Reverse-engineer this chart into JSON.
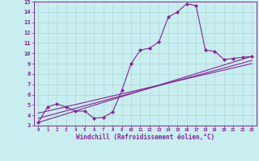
{
  "title": "",
  "xlabel": "Windchill (Refroidissement éolien,°C)",
  "bg_color": "#c8eef0",
  "grid_color": "#b0d8d8",
  "line_color": "#882299",
  "xlim": [
    -0.5,
    23.5
  ],
  "ylim": [
    3,
    15
  ],
  "xticks": [
    0,
    1,
    2,
    3,
    4,
    5,
    6,
    7,
    8,
    9,
    10,
    11,
    12,
    13,
    14,
    15,
    16,
    17,
    18,
    19,
    20,
    21,
    22,
    23
  ],
  "yticks": [
    3,
    4,
    5,
    6,
    7,
    8,
    9,
    10,
    11,
    12,
    13,
    14,
    15
  ],
  "noisy_x": [
    0,
    1,
    2,
    3,
    4,
    5,
    6,
    7,
    8,
    9,
    10,
    11,
    12,
    13,
    14,
    15,
    16,
    17,
    18,
    19,
    20,
    21,
    22,
    23
  ],
  "noisy_y": [
    3.3,
    4.8,
    5.1,
    4.8,
    4.4,
    4.4,
    3.7,
    3.8,
    4.3,
    6.4,
    9.0,
    10.3,
    10.5,
    11.1,
    13.5,
    14.0,
    14.8,
    14.6,
    10.3,
    10.2,
    9.4,
    9.5,
    9.6,
    9.7
  ],
  "line1_x": [
    0,
    23
  ],
  "line1_y": [
    3.3,
    9.7
  ],
  "line2_x": [
    0,
    23
  ],
  "line2_y": [
    3.7,
    9.3
  ],
  "line3_x": [
    0,
    23
  ],
  "line3_y": [
    4.2,
    9.0
  ]
}
